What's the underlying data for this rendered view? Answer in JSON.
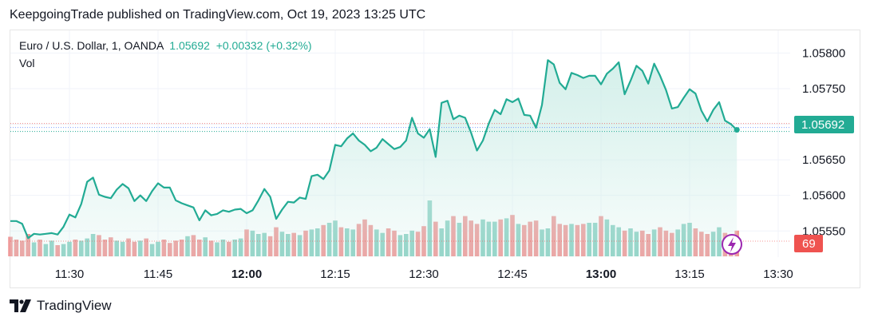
{
  "header": {
    "publish_text": "KeepgoingTrade published on TradingView.com, Oct 19, 2023 13:25 UTC"
  },
  "legend": {
    "symbol": "Euro / U.S. Dollar, 1, OANDA",
    "last": "1.05692",
    "change": "+0.00332 (+0.32%)",
    "volume_label": "Vol"
  },
  "price_badge": "1.05692",
  "volume_badge": "69",
  "footer": {
    "brand": "TradingView"
  },
  "colors": {
    "line": "#22ab94",
    "area_top": "#cfeee8",
    "up_volume": "#8dd1c4",
    "down_volume": "#ef9a9a",
    "badge_down": "#ef5350",
    "flash_icon": "#9c27b0"
  },
  "chart_data": {
    "type": "area",
    "title": "Euro / U.S. Dollar, 1, OANDA",
    "x_tick_labels": [
      "11:30",
      "11:45",
      "12:00",
      "12:15",
      "12:30",
      "12:45",
      "13:00",
      "13:15",
      "13:30"
    ],
    "x_tick_bold": [
      "12:00",
      "13:00"
    ],
    "y_tick_labels": [
      "1.05800",
      "1.05750",
      "1.05700",
      "1.05650",
      "1.05600",
      "1.05550"
    ],
    "ylim": [
      1.0552,
      1.05815
    ],
    "x_start": "11:20",
    "interval_minutes": 1,
    "close_series": [
      1.05564,
      1.05564,
      1.0556,
      1.0554,
      1.05546,
      1.05545,
      1.05546,
      1.05547,
      1.05545,
      1.05556,
      1.05573,
      1.05569,
      1.05588,
      1.05619,
      1.05625,
      1.05601,
      1.05598,
      1.05596,
      1.05608,
      1.05616,
      1.0561,
      1.05592,
      1.056,
      1.05592,
      1.05606,
      1.05617,
      1.05611,
      1.05611,
      1.05593,
      1.05589,
      1.05586,
      1.05583,
      1.05565,
      1.05579,
      1.05572,
      1.05574,
      1.05579,
      1.05577,
      1.0558,
      1.05581,
      1.05575,
      1.05579,
      1.05593,
      1.05609,
      1.05598,
      1.05567,
      1.0558,
      1.05591,
      1.0559,
      1.05597,
      1.05595,
      1.05627,
      1.05629,
      1.05623,
      1.05635,
      1.05671,
      1.05669,
      1.0568,
      1.05687,
      1.05677,
      1.05671,
      1.05662,
      1.05667,
      1.05679,
      1.05672,
      1.05665,
      1.05668,
      1.05677,
      1.05709,
      1.05687,
      1.05681,
      1.05693,
      1.05654,
      1.0573,
      1.05733,
      1.05707,
      1.05712,
      1.05709,
      1.05688,
      1.05663,
      1.05677,
      1.05701,
      1.0572,
      1.05714,
      1.05735,
      1.05731,
      1.05736,
      1.05713,
      1.05712,
      1.05695,
      1.05727,
      1.0579,
      1.05784,
      1.05758,
      1.05749,
      1.05772,
      1.05769,
      1.05765,
      1.05768,
      1.05768,
      1.05756,
      1.05771,
      1.05778,
      1.05787,
      1.05742,
      1.05761,
      1.05782,
      1.05775,
      1.05757,
      1.05785,
      1.05768,
      1.05748,
      1.05722,
      1.05724,
      1.05737,
      1.05749,
      1.05743,
      1.05719,
      1.05704,
      1.0572,
      1.05731,
      1.05705,
      1.057,
      1.05692
    ],
    "last_price": 1.05692,
    "volume_max": 100,
    "volume_series": [
      35,
      30,
      28,
      40,
      25,
      30,
      22,
      28,
      20,
      22,
      26,
      30,
      28,
      32,
      40,
      38,
      30,
      34,
      28,
      26,
      32,
      26,
      28,
      32,
      22,
      26,
      30,
      24,
      28,
      30,
      36,
      38,
      30,
      34,
      28,
      25,
      30,
      26,
      30,
      32,
      48,
      46,
      40,
      42,
      36,
      52,
      44,
      40,
      42,
      38,
      46,
      48,
      50,
      56,
      60,
      64,
      52,
      50,
      48,
      58,
      66,
      56,
      48,
      42,
      50,
      46,
      38,
      40,
      46,
      44,
      54,
      100,
      62,
      50,
      64,
      72,
      60,
      72,
      64,
      58,
      66,
      62,
      62,
      66,
      68,
      74,
      58,
      56,
      62,
      64,
      48,
      50,
      72,
      58,
      56,
      58,
      56,
      58,
      60,
      60,
      72,
      66,
      56,
      52,
      46,
      50,
      44,
      46,
      40,
      48,
      52,
      46,
      42,
      48,
      58,
      60,
      50,
      44,
      40,
      44,
      52,
      42,
      38,
      46
    ],
    "volume_up": [
      0,
      0,
      0,
      0,
      1,
      0,
      1,
      1,
      0,
      1,
      1,
      0,
      1,
      1,
      1,
      0,
      0,
      0,
      1,
      1,
      0,
      0,
      1,
      0,
      1,
      1,
      0,
      0,
      0,
      0,
      1,
      0,
      0,
      1,
      0,
      1,
      1,
      0,
      1,
      1,
      0,
      1,
      1,
      1,
      0,
      0,
      1,
      1,
      0,
      1,
      0,
      1,
      1,
      0,
      1,
      1,
      0,
      1,
      1,
      0,
      0,
      0,
      1,
      1,
      0,
      0,
      1,
      1,
      1,
      0,
      0,
      1,
      0,
      1,
      1,
      0,
      1,
      0,
      0,
      0,
      1,
      1,
      1,
      0,
      1,
      0,
      1,
      0,
      0,
      0,
      1,
      1,
      0,
      0,
      0,
      1,
      0,
      0,
      1,
      1,
      0,
      1,
      1,
      1,
      0,
      1,
      1,
      0,
      0,
      1,
      0,
      0,
      0,
      1,
      1,
      1,
      0,
      0,
      0,
      1,
      1,
      0,
      0,
      0
    ],
    "last_volume": 69
  }
}
